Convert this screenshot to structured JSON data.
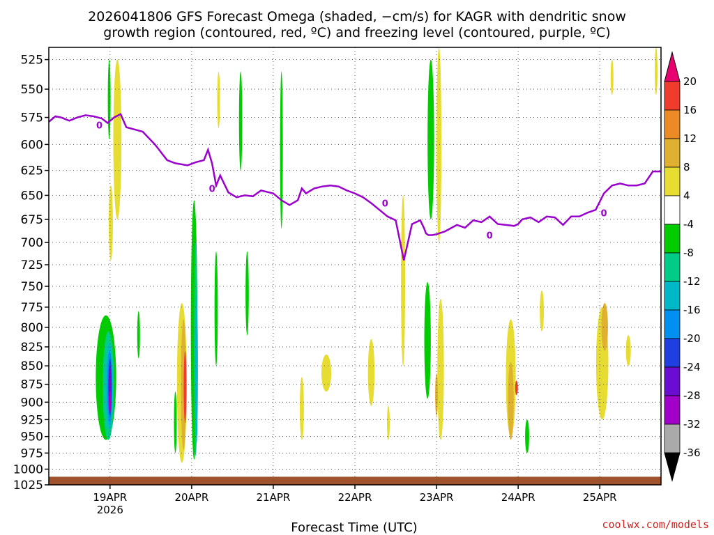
{
  "title_line1": "2026041806 GFS Forecast Omega (shaded, −cm/s) for KAGR with dendritic snow",
  "title_line2": "growth region (contoured, red, ºC) and freezing level (contoured, purple, ºC)",
  "credit": "coolwx.com/models",
  "colors": {
    "freezing_level": "#9900cc",
    "terrain": "#a0522d",
    "grid": "#555555"
  },
  "chart_data": {
    "type": "heatmap",
    "title": "2026041806 GFS Forecast Omega (shaded, −cm/s) for KAGR with dendritic snow growth region (contoured, red, ºC) and freezing level (contoured, purple, ºC)",
    "xlabel": "Forecast Time (UTC)",
    "ylabel": "",
    "x_unit": "days since 2026-04-18 06Z",
    "xlim": [
      0,
      7.5
    ],
    "ylim": [
      1025,
      515
    ],
    "y_scale": "log-pressure",
    "y_ticks": [
      525,
      550,
      575,
      600,
      625,
      650,
      675,
      700,
      725,
      750,
      775,
      800,
      825,
      850,
      875,
      900,
      925,
      950,
      975,
      1000,
      1025
    ],
    "x_ticks": [
      {
        "x": 0.75,
        "label": "19APR",
        "sub": "2026"
      },
      {
        "x": 1.75,
        "label": "20APR",
        "sub": ""
      },
      {
        "x": 2.75,
        "label": "21APR",
        "sub": ""
      },
      {
        "x": 3.75,
        "label": "22APR",
        "sub": ""
      },
      {
        "x": 4.75,
        "label": "23APR",
        "sub": ""
      },
      {
        "x": 5.75,
        "label": "24APR",
        "sub": ""
      },
      {
        "x": 6.75,
        "label": "25APR",
        "sub": ""
      }
    ],
    "grid": true,
    "colorbar": {
      "levels": [
        20,
        16,
        12,
        8,
        4,
        -4,
        -8,
        -12,
        -16,
        -20,
        -24,
        -28,
        -32,
        -36
      ],
      "colors": [
        "#e8006f",
        "#f03c2c",
        "#ec8a26",
        "#e0b030",
        "#e6dc32",
        "#ffffff",
        "#00cc00",
        "#00cc88",
        "#00b8c8",
        "#0090f0",
        "#1f3fe0",
        "#6a0dd0",
        "#a000c8",
        "#aaaaaa",
        "#000000"
      ]
    },
    "series": [
      {
        "name": "freezing level 0ºC",
        "x": [
          0,
          0.08,
          0.15,
          0.25,
          0.35,
          0.45,
          0.55,
          0.65,
          0.72,
          0.8,
          0.88,
          0.95,
          1.05,
          1.15,
          1.3,
          1.45,
          1.55,
          1.7,
          1.8,
          1.9,
          1.95,
          2.0,
          2.05,
          2.1,
          2.2,
          2.3,
          2.4,
          2.5,
          2.6,
          2.75,
          2.85,
          2.95,
          3.05,
          3.1,
          3.15,
          3.25,
          3.35,
          3.45,
          3.55,
          3.65,
          3.75,
          3.85,
          3.95,
          4.05,
          4.15,
          4.25,
          4.35,
          4.45,
          4.55,
          4.6,
          4.62,
          4.65,
          4.7,
          4.75,
          4.85,
          5.0,
          5.1,
          5.2,
          5.3,
          5.4,
          5.5,
          5.6,
          5.7,
          5.75,
          5.8,
          5.9,
          6.0,
          6.1,
          6.2,
          6.3,
          6.4,
          6.5,
          6.6,
          6.7,
          6.8,
          6.9,
          7.0,
          7.1,
          7.2,
          7.3,
          7.4,
          7.5
        ],
        "values": [
          579,
          574,
          575,
          578,
          575,
          573,
          574,
          576,
          580,
          575,
          572,
          584,
          586,
          588,
          600,
          615,
          618,
          620,
          617,
          615,
          605,
          618,
          640,
          630,
          647,
          652,
          650,
          651,
          645,
          648,
          655,
          660,
          655,
          643,
          648,
          643,
          641,
          640,
          641,
          645,
          648,
          652,
          658,
          665,
          672,
          676,
          720,
          680,
          676,
          685,
          690,
          692,
          692,
          691,
          688,
          681,
          684,
          676,
          678,
          672,
          680,
          681,
          682,
          680,
          675,
          673,
          678,
          672,
          673,
          681,
          672,
          672,
          668,
          665,
          648,
          640,
          638,
          640,
          640,
          638,
          626,
          626
        ]
      }
    ],
    "contour_labels": [
      {
        "x": 0.62,
        "p": 582,
        "text": "0"
      },
      {
        "x": 2.0,
        "p": 643,
        "text": "0"
      },
      {
        "x": 4.12,
        "p": 658,
        "text": "0"
      },
      {
        "x": 5.4,
        "p": 692,
        "text": "0"
      },
      {
        "x": 6.8,
        "p": 668,
        "text": "0"
      }
    ]
  }
}
